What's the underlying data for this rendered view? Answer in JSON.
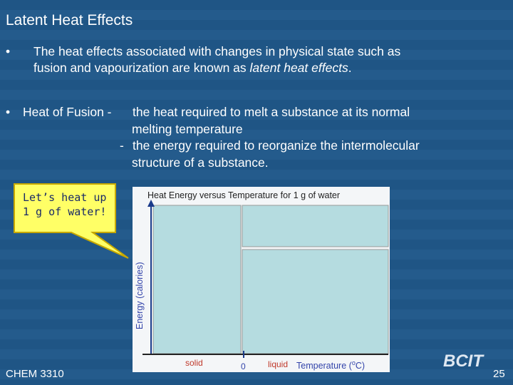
{
  "title": "Latent Heat Effects",
  "bullet1": {
    "marker": "•",
    "line1": "The heat effects associated with changes in physical state such as",
    "line2": "fusion and vapourization are known as",
    "italic": "latent heat effects",
    "end": "."
  },
  "bullet2": {
    "marker": "•",
    "term": "Heat of Fusion -",
    "def1_line1": "the heat required to melt a substance at its normal",
    "def1_line2": "melting temperature",
    "dash": "-",
    "def2_line1": "the energy required to reorganize the intermolecular",
    "def2_line2": "structure of a substance."
  },
  "callout": {
    "line1": "Let’s heat up",
    "line2": "1 g of water!"
  },
  "figure": {
    "title": "Heat Energy versus Temperature for 1 g of water",
    "y_label": "Energy (calories)",
    "solid": "solid",
    "zero": "0",
    "liquid": "liquid",
    "x_label": "Temperature (",
    "x_sup": "o",
    "x_end": "C)"
  },
  "footer": {
    "course": "CHEM 3310",
    "logo": "BCIT",
    "page": "25"
  }
}
